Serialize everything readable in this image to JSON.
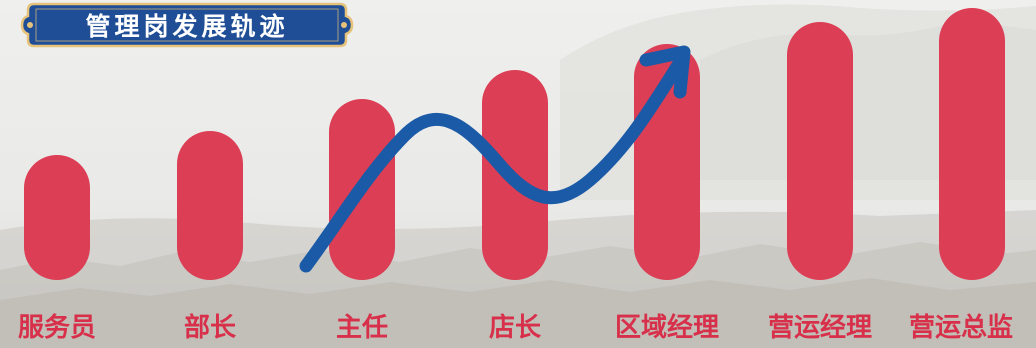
{
  "title": "管理岗发展轨迹",
  "stages": [
    {
      "name": "服务员",
      "level": 1
    },
    {
      "name": "部长",
      "level": 2
    },
    {
      "name": "主任",
      "level": 3
    },
    {
      "name": "店长",
      "level": 4
    },
    {
      "name": "区域经理",
      "level": 5
    },
    {
      "name": "营运经理",
      "level": 6
    },
    {
      "name": "营运总监",
      "level": 7
    }
  ],
  "colors": {
    "bar": "#dc3e55",
    "label": "#d8304a",
    "arrow": "#1b5aa6",
    "badge": "#1f4e96",
    "badge_border": "#e6c27a"
  }
}
